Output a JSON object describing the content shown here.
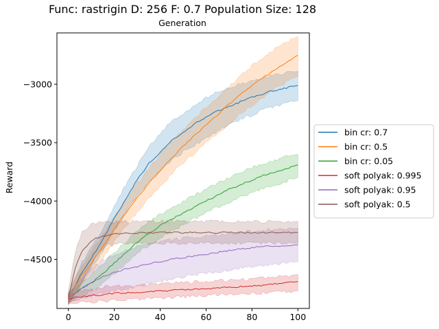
{
  "chart_data": {
    "type": "line",
    "title": "Func: rastrigin D: 256 F: 0.7 Population Size: 128",
    "subtitle": "Generation",
    "xlabel": "",
    "ylabel": "Reward",
    "xlim": [
      -5,
      105
    ],
    "ylim": [
      -4920,
      -2560
    ],
    "xticks": [
      0,
      20,
      40,
      60,
      80,
      100
    ],
    "yticks": [
      -4500,
      -4000,
      -3500,
      -3000
    ],
    "ytick_labels": [
      "−4500",
      "−4000",
      "−3500",
      "−3000"
    ],
    "grid": false,
    "legend_position": "right (outside plot)",
    "series": [
      {
        "name": "bin cr: 0.7",
        "color": "#1f77b4",
        "x": [
          0,
          5,
          10,
          15,
          20,
          25,
          30,
          35,
          40,
          45,
          50,
          55,
          60,
          65,
          70,
          75,
          80,
          85,
          90,
          95,
          100
        ],
        "mean": [
          -4840,
          -4640,
          -4490,
          -4330,
          -4150,
          -3980,
          -3820,
          -3680,
          -3580,
          -3480,
          -3410,
          -3340,
          -3280,
          -3230,
          -3190,
          -3150,
          -3110,
          -3080,
          -3050,
          -3030,
          -3010
        ],
        "lower": [
          -4880,
          -4720,
          -4580,
          -4420,
          -4260,
          -4100,
          -3950,
          -3830,
          -3740,
          -3650,
          -3580,
          -3520,
          -3460,
          -3400,
          -3350,
          -3300,
          -3260,
          -3220,
          -3190,
          -3160,
          -3140
        ],
        "upper": [
          -4790,
          -4560,
          -4400,
          -4240,
          -4040,
          -3860,
          -3700,
          -3540,
          -3420,
          -3320,
          -3250,
          -3180,
          -3120,
          -3070,
          -3030,
          -3000,
          -2970,
          -2950,
          -2920,
          -2900,
          -2890
        ]
      },
      {
        "name": "bin cr: 0.5",
        "color": "#ff7f0e",
        "x": [
          0,
          5,
          10,
          15,
          20,
          25,
          30,
          35,
          40,
          45,
          50,
          55,
          60,
          65,
          70,
          75,
          80,
          85,
          90,
          95,
          100
        ],
        "mean": [
          -4840,
          -4660,
          -4530,
          -4390,
          -4240,
          -4100,
          -3970,
          -3850,
          -3740,
          -3630,
          -3530,
          -3440,
          -3350,
          -3260,
          -3170,
          -3090,
          -3010,
          -2940,
          -2880,
          -2810,
          -2750
        ],
        "lower": [
          -4880,
          -4740,
          -4620,
          -4490,
          -4350,
          -4220,
          -4090,
          -3980,
          -3880,
          -3770,
          -3670,
          -3590,
          -3500,
          -3420,
          -3340,
          -3250,
          -3180,
          -3110,
          -3040,
          -2980,
          -2930
        ],
        "upper": [
          -4790,
          -4580,
          -4440,
          -4290,
          -4140,
          -3990,
          -3850,
          -3720,
          -3600,
          -3490,
          -3390,
          -3290,
          -3200,
          -3110,
          -3020,
          -2930,
          -2840,
          -2770,
          -2700,
          -2640,
          -2590
        ]
      },
      {
        "name": "bin cr: 0.05",
        "color": "#2ca02c",
        "x": [
          0,
          5,
          10,
          15,
          20,
          25,
          30,
          35,
          40,
          45,
          50,
          55,
          60,
          65,
          70,
          75,
          80,
          85,
          90,
          95,
          100
        ],
        "mean": [
          -4830,
          -4760,
          -4700,
          -4620,
          -4530,
          -4440,
          -4350,
          -4280,
          -4210,
          -4160,
          -4100,
          -4050,
          -4000,
          -3950,
          -3900,
          -3860,
          -3820,
          -3780,
          -3750,
          -3720,
          -3690
        ],
        "lower": [
          -4870,
          -4820,
          -4770,
          -4700,
          -4620,
          -4530,
          -4450,
          -4380,
          -4310,
          -4260,
          -4200,
          -4150,
          -4100,
          -4050,
          -4010,
          -3970,
          -3930,
          -3890,
          -3860,
          -3830,
          -3800
        ],
        "upper": [
          -4790,
          -4710,
          -4630,
          -4540,
          -4440,
          -4350,
          -4260,
          -4180,
          -4110,
          -4060,
          -4000,
          -3950,
          -3900,
          -3850,
          -3800,
          -3750,
          -3710,
          -3680,
          -3650,
          -3620,
          -3600
        ]
      },
      {
        "name": "soft polyak: 0.995",
        "color": "#d62728",
        "x": [
          0,
          5,
          10,
          15,
          20,
          25,
          30,
          35,
          40,
          45,
          50,
          55,
          60,
          65,
          70,
          75,
          80,
          85,
          90,
          95,
          100
        ],
        "mean": [
          -4840,
          -4820,
          -4810,
          -4800,
          -4790,
          -4785,
          -4780,
          -4775,
          -4770,
          -4765,
          -4760,
          -4755,
          -4750,
          -4745,
          -4740,
          -4735,
          -4730,
          -4720,
          -4710,
          -4700,
          -4690
        ],
        "lower": [
          -4880,
          -4870,
          -4865,
          -4860,
          -4850,
          -4845,
          -4840,
          -4835,
          -4830,
          -4825,
          -4820,
          -4815,
          -4810,
          -4805,
          -4800,
          -4795,
          -4790,
          -4785,
          -4780,
          -4775,
          -4770
        ],
        "upper": [
          -4800,
          -4770,
          -4755,
          -4740,
          -4730,
          -4725,
          -4720,
          -4715,
          -4710,
          -4705,
          -4700,
          -4695,
          -4690,
          -4685,
          -4680,
          -4675,
          -4670,
          -4660,
          -4650,
          -4640,
          -4630
        ]
      },
      {
        "name": "soft polyak: 0.95",
        "color": "#9467bd",
        "x": [
          0,
          5,
          10,
          15,
          20,
          25,
          30,
          35,
          40,
          45,
          50,
          55,
          60,
          65,
          70,
          75,
          80,
          85,
          90,
          95,
          100
        ],
        "mean": [
          -4830,
          -4760,
          -4700,
          -4650,
          -4610,
          -4580,
          -4560,
          -4540,
          -4520,
          -4500,
          -4485,
          -4470,
          -4455,
          -4440,
          -4425,
          -4410,
          -4400,
          -4390,
          -4385,
          -4380,
          -4375
        ],
        "lower": [
          -4870,
          -4840,
          -4810,
          -4790,
          -4770,
          -4750,
          -4730,
          -4710,
          -4690,
          -4670,
          -4650,
          -4630,
          -4620,
          -4605,
          -4590,
          -4575,
          -4560,
          -4550,
          -4540,
          -4530,
          -4520
        ],
        "upper": [
          -4790,
          -4670,
          -4580,
          -4510,
          -4460,
          -4420,
          -4390,
          -4370,
          -4350,
          -4330,
          -4320,
          -4310,
          -4300,
          -4290,
          -4280,
          -4270,
          -4260,
          -4250,
          -4245,
          -4240,
          -4235
        ]
      },
      {
        "name": "soft polyak: 0.5",
        "color": "#8c564b",
        "x": [
          0,
          3,
          6,
          9,
          12,
          15,
          18,
          21,
          25,
          30,
          40,
          50,
          60,
          70,
          80,
          90,
          100
        ],
        "mean": [
          -4830,
          -4570,
          -4430,
          -4360,
          -4320,
          -4300,
          -4285,
          -4280,
          -4275,
          -4272,
          -4270,
          -4270,
          -4270,
          -4270,
          -4270,
          -4270,
          -4270
        ],
        "lower": [
          -4890,
          -4800,
          -4690,
          -4580,
          -4470,
          -4400,
          -4375,
          -4370,
          -4365,
          -4362,
          -4360,
          -4360,
          -4360,
          -4360,
          -4360,
          -4360,
          -4360
        ],
        "upper": [
          -4770,
          -4430,
          -4270,
          -4210,
          -4190,
          -4185,
          -4180,
          -4178,
          -4177,
          -4176,
          -4175,
          -4175,
          -4175,
          -4175,
          -4175,
          -4175,
          -4175
        ]
      }
    ]
  }
}
